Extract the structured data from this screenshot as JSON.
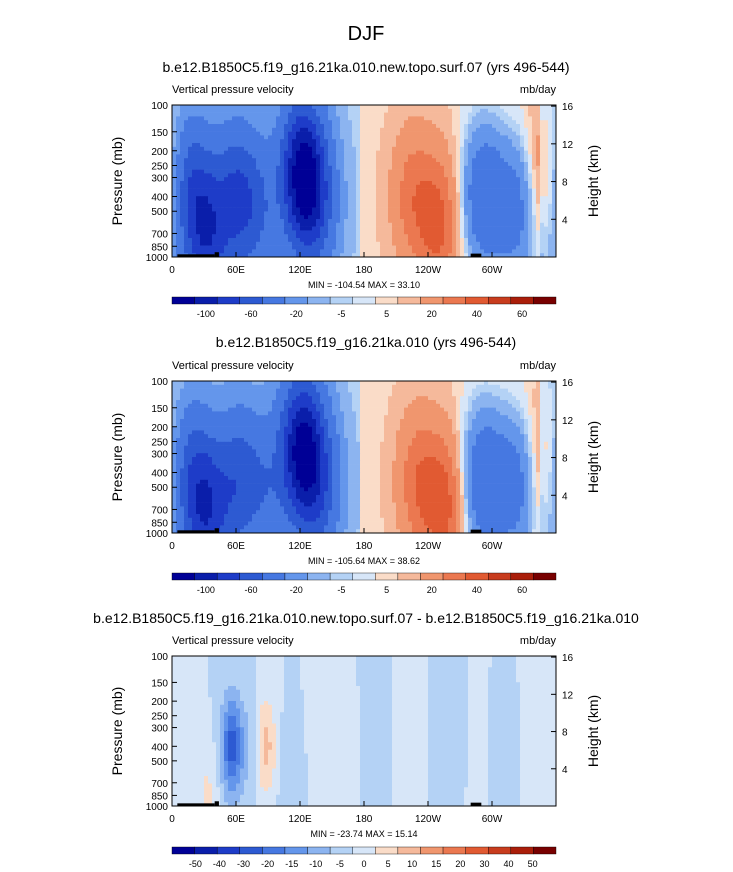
{
  "page_title": "DJF",
  "colors": {
    "negative_strong": "#000096",
    "negative": "#2d5ad2",
    "neutral_light": "#f5f7fa",
    "positive": "#eb6441",
    "positive_strong": "#780000",
    "terrain": "#000000"
  },
  "chart_data": [
    {
      "type": "heatmap",
      "title": "b.e12.B1850C5.f19_g16.21ka.010.new.topo.surf.07 (yrs 496-544)",
      "left_label": "Vertical pressure velocity",
      "units": "mb/day",
      "ylabel": "Pressure (mb)",
      "ylabel_right": "Height (km)",
      "yticks": [
        "100",
        "150",
        "200",
        "250",
        "300",
        "400",
        "500",
        "700",
        "850",
        "1000"
      ],
      "yticks_right": [
        "16",
        "12",
        "8",
        "4"
      ],
      "xticks": [
        "0",
        "60E",
        "120E",
        "180",
        "120W",
        "60W"
      ],
      "stats": "MIN = -104.54  MAX =  33.10",
      "colorbar_labels": [
        "-100",
        "-60",
        "-20",
        "-5",
        "5",
        "20",
        "40",
        "60"
      ],
      "colorbar_colors": [
        "#000096",
        "#0a1eaa",
        "#1e3cc8",
        "#2d5ad2",
        "#4678e1",
        "#6496eb",
        "#8cb4f0",
        "#b4d2f5",
        "#d7e6f8",
        "#fadcc8",
        "#f5b99b",
        "#f0966e",
        "#eb7850",
        "#e15a32",
        "#c83c1e",
        "#aa1e0a",
        "#780000"
      ],
      "centers": [
        {
          "lon": 18,
          "p": 350,
          "v": -45
        },
        {
          "lon": 33,
          "p": 750,
          "v": -60
        },
        {
          "lon": 60,
          "p": 400,
          "v": -50
        },
        {
          "lon": 80,
          "p": 500,
          "v": -30
        },
        {
          "lon": 122,
          "p": 280,
          "v": -100
        },
        {
          "lon": 135,
          "p": 450,
          "v": -40
        },
        {
          "lon": 225,
          "p": 400,
          "v": 20
        },
        {
          "lon": 250,
          "p": 600,
          "v": 28
        },
        {
          "lon": 292,
          "p": 400,
          "v": -40
        },
        {
          "lon": 322,
          "p": 500,
          "v": -30
        },
        {
          "lon": 352,
          "p": 300,
          "v": 18
        }
      ]
    },
    {
      "type": "heatmap",
      "title": "b.e12.B1850C5.f19_g16.21ka.010 (yrs 496-544)",
      "left_label": "Vertical pressure velocity",
      "units": "mb/day",
      "ylabel": "Pressure (mb)",
      "ylabel_right": "Height (km)",
      "yticks": [
        "100",
        "150",
        "200",
        "250",
        "300",
        "400",
        "500",
        "700",
        "850",
        "1000"
      ],
      "yticks_right": [
        "16",
        "12",
        "8",
        "4"
      ],
      "xticks": [
        "0",
        "60E",
        "120E",
        "180",
        "120W",
        "60W"
      ],
      "stats": "MIN = -105.64  MAX =  38.62",
      "colorbar_labels": [
        "-100",
        "-60",
        "-20",
        "-5",
        "5",
        "20",
        "40",
        "60"
      ],
      "colorbar_colors": [
        "#000096",
        "#0a1eaa",
        "#1e3cc8",
        "#2d5ad2",
        "#4678e1",
        "#6496eb",
        "#8cb4f0",
        "#b4d2f5",
        "#d7e6f8",
        "#fadcc8",
        "#f5b99b",
        "#f0966e",
        "#eb7850",
        "#e15a32",
        "#c83c1e",
        "#aa1e0a",
        "#780000"
      ],
      "centers": [
        {
          "lon": 18,
          "p": 400,
          "v": -40
        },
        {
          "lon": 33,
          "p": 750,
          "v": -60
        },
        {
          "lon": 62,
          "p": 450,
          "v": -45
        },
        {
          "lon": 88,
          "p": 500,
          "v": -25
        },
        {
          "lon": 122,
          "p": 280,
          "v": -100
        },
        {
          "lon": 138,
          "p": 500,
          "v": -40
        },
        {
          "lon": 230,
          "p": 450,
          "v": 22
        },
        {
          "lon": 255,
          "p": 650,
          "v": 30
        },
        {
          "lon": 292,
          "p": 450,
          "v": -40
        },
        {
          "lon": 322,
          "p": 500,
          "v": -30
        },
        {
          "lon": 352,
          "p": 350,
          "v": 15
        }
      ]
    },
    {
      "type": "heatmap",
      "title": "b.e12.B1850C5.f19_g16.21ka.010.new.topo.surf.07 - b.e12.B1850C5.f19_g16.21ka.010",
      "left_label": "Vertical pressure velocity",
      "units": "mb/day",
      "ylabel": "Pressure (mb)",
      "ylabel_right": "Height (km)",
      "yticks": [
        "100",
        "150",
        "200",
        "250",
        "300",
        "400",
        "500",
        "700",
        "850",
        "1000"
      ],
      "yticks_right": [
        "16",
        "12",
        "8",
        "4"
      ],
      "xticks": [
        "0",
        "60E",
        "120E",
        "180",
        "120W",
        "60W"
      ],
      "stats": "MIN = -23.74  MAX =  15.14",
      "colorbar_labels": [
        "-50",
        "-40",
        "-30",
        "-20",
        "-15",
        "-10",
        "-5",
        "0",
        "5",
        "10",
        "15",
        "20",
        "30",
        "40",
        "50"
      ],
      "colorbar_colors": [
        "#000096",
        "#0a1eaa",
        "#1e3cc8",
        "#2d5ad2",
        "#4678e1",
        "#6496eb",
        "#8cb4f0",
        "#b4d2f5",
        "#d7e6f8",
        "#fadcc8",
        "#f5b99b",
        "#f0966e",
        "#eb7850",
        "#e15a32",
        "#c83c1e",
        "#aa1e0a",
        "#780000"
      ],
      "centers": [
        {
          "lon": 8,
          "p": 550,
          "v": 4
        },
        {
          "lon": 33,
          "p": 850,
          "v": 6
        },
        {
          "lon": 56,
          "p": 400,
          "v": -22
        },
        {
          "lon": 72,
          "p": 400,
          "v": -5
        },
        {
          "lon": 88,
          "p": 400,
          "v": 12
        },
        {
          "lon": 110,
          "p": 600,
          "v": -5
        },
        {
          "lon": 140,
          "p": 300,
          "v": 4
        },
        {
          "lon": 160,
          "p": 500,
          "v": 3
        },
        {
          "lon": 192,
          "p": 400,
          "v": -4
        },
        {
          "lon": 220,
          "p": 400,
          "v": 3
        },
        {
          "lon": 262,
          "p": 400,
          "v": -3
        },
        {
          "lon": 290,
          "p": 450,
          "v": 3
        },
        {
          "lon": 305,
          "p": 500,
          "v": -4
        },
        {
          "lon": 345,
          "p": 400,
          "v": 3
        }
      ]
    }
  ]
}
